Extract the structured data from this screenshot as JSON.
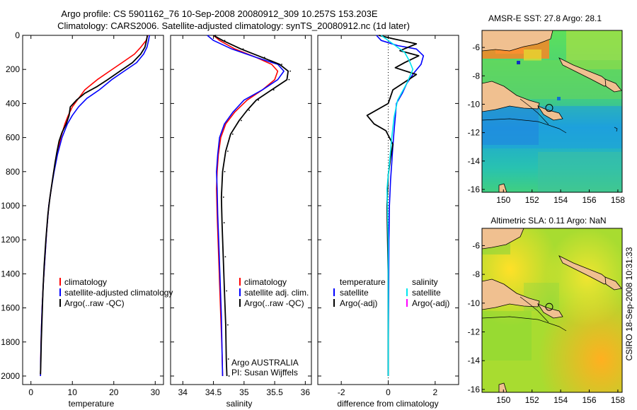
{
  "header": {
    "line1": "Argo profile: CS 5901162_76 10-Sep-2008 20080912_309 10.257S 153.203E",
    "line2": "Climatology: CARS2006. Satellite-adjusted climatology: synTS_20080912.nc (1d later)"
  },
  "side_label": "CSIRO 18-Sep-2008 10:31:33",
  "colors": {
    "climatology": "#ff0000",
    "satellite": "#0000ff",
    "argo": "#000000",
    "sst_satellite": "#00e5ee",
    "argo_adj_sal": "#ff00ff"
  },
  "chart_data": [
    {
      "type": "line",
      "name": "temperature-profile",
      "xlabel": "temperature",
      "ylabel": "",
      "xlim": [
        -2,
        32
      ],
      "ylim": [
        0,
        2050
      ],
      "y_reversed": true,
      "xticks": [
        0,
        10,
        20,
        30
      ],
      "yticks": [
        0,
        200,
        400,
        600,
        800,
        1000,
        1200,
        1400,
        1600,
        1800,
        2000
      ],
      "legend": [
        "climatology",
        "satellite-adjusted climatology",
        "Argo(..raw -QC)"
      ],
      "series": [
        {
          "name": "climatology",
          "color": "#ff0000",
          "x": [
            28.2,
            27.8,
            26.5,
            25,
            22,
            19,
            16,
            13,
            11.5,
            10,
            9,
            8.2,
            7.2,
            6.3,
            5.5,
            4.9,
            4.3,
            3.8,
            3.4,
            3.0,
            2.7,
            2.5,
            2.35,
            2.3
          ],
          "y": [
            0,
            30,
            70,
            110,
            160,
            210,
            260,
            320,
            370,
            420,
            470,
            520,
            600,
            700,
            800,
            900,
            1000,
            1150,
            1300,
            1450,
            1600,
            1750,
            1900,
            2000
          ]
        },
        {
          "name": "satellite-adjusted climatology",
          "color": "#0000ff",
          "x": [
            28.6,
            28.4,
            28,
            27.2,
            25.5,
            22.5,
            19.5,
            16.5,
            13.5,
            11.5,
            10,
            8.8,
            7.5,
            6.4,
            5.6,
            4.9,
            4.3,
            3.8,
            3.4,
            3.0,
            2.7,
            2.5,
            2.35,
            2.3
          ],
          "y": [
            0,
            30,
            70,
            110,
            160,
            210,
            260,
            320,
            370,
            420,
            470,
            520,
            600,
            700,
            800,
            900,
            1000,
            1150,
            1300,
            1450,
            1600,
            1750,
            1900,
            2000
          ]
        },
        {
          "name": "Argo(..raw -QC)",
          "color": "#000000",
          "x": [
            28.1,
            27.9,
            27.5,
            26.5,
            24.5,
            21.5,
            18.5,
            16,
            13,
            11,
            9.5,
            9.2,
            8.5,
            7.5,
            6.8,
            6.3,
            5.8,
            5.2,
            4.6,
            4.1,
            3.6,
            3.2,
            2.9,
            2.7,
            2.5,
            2.4,
            2.3
          ],
          "y": [
            0,
            30,
            70,
            110,
            160,
            210,
            260,
            300,
            340,
            380,
            420,
            470,
            520,
            570,
            620,
            680,
            750,
            850,
            950,
            1050,
            1200,
            1350,
            1500,
            1650,
            1800,
            1900,
            1990
          ]
        }
      ]
    },
    {
      "type": "line",
      "name": "salinity-profile",
      "xlabel": "salinity",
      "ylabel": "",
      "xlim": [
        33.8,
        36.1
      ],
      "ylim": [
        0,
        2050
      ],
      "y_reversed": true,
      "xticks": [
        34,
        34.5,
        35,
        35.5,
        36
      ],
      "legend": [
        "climatology",
        "satellite adj. clim.",
        "Argo(..raw -QC)"
      ],
      "annotation": [
        "Argo AUSTRALIA",
        "PI: Susan Wijffels"
      ],
      "series": [
        {
          "name": "climatology",
          "color": "#ff0000",
          "x": [
            34.5,
            34.6,
            34.85,
            35.2,
            35.45,
            35.55,
            35.5,
            35.3,
            35.05,
            34.85,
            34.7,
            34.62,
            34.58,
            34.56,
            34.55,
            34.56,
            34.58,
            34.6,
            34.62,
            34.64,
            34.65
          ],
          "y": [
            0,
            30,
            80,
            130,
            170,
            210,
            260,
            320,
            380,
            450,
            520,
            600,
            700,
            800,
            900,
            1050,
            1250,
            1450,
            1650,
            1850,
            2000
          ]
        },
        {
          "name": "satellite adj. clim.",
          "color": "#0000ff",
          "x": [
            34.4,
            34.5,
            34.8,
            35.2,
            35.55,
            35.65,
            35.55,
            35.3,
            35.0,
            34.82,
            34.68,
            34.6,
            34.57,
            34.55,
            34.56,
            34.57,
            34.59,
            34.61,
            34.63,
            34.64,
            34.65
          ],
          "y": [
            0,
            30,
            80,
            130,
            170,
            210,
            260,
            320,
            380,
            450,
            520,
            600,
            700,
            800,
            900,
            1050,
            1250,
            1450,
            1650,
            1850,
            2000
          ]
        },
        {
          "name": "Argo(..raw -QC)",
          "color": "#000000",
          "x": [
            34.5,
            34.65,
            34.95,
            35.3,
            35.58,
            35.72,
            35.7,
            35.45,
            35.2,
            35.05,
            34.92,
            34.78,
            34.7,
            34.65,
            34.63,
            34.64,
            34.66,
            34.68,
            34.7,
            34.71,
            34.72
          ],
          "y": [
            0,
            30,
            80,
            130,
            170,
            210,
            260,
            320,
            380,
            440,
            500,
            580,
            680,
            800,
            950,
            1100,
            1300,
            1500,
            1700,
            1900,
            2000
          ]
        }
      ]
    },
    {
      "type": "line",
      "name": "difference-profile",
      "xlabel": "difference from climatology",
      "ylabel": "",
      "xlim": [
        -3,
        3
      ],
      "ylim": [
        0,
        2050
      ],
      "y_reversed": true,
      "xticks": [
        -2,
        0,
        2
      ],
      "legend_left": [
        "temperature",
        "satellite",
        "Argo(-adj)"
      ],
      "legend_right": [
        "salinity",
        "satellite",
        "Argo(-adj)"
      ],
      "series": [
        {
          "name": "temperature satellite",
          "color": "#0000ff",
          "x": [
            -0.5,
            -0.3,
            0.4,
            1.2,
            1.5,
            1.4,
            1.1,
            0.8,
            0.6,
            0.35,
            0.3,
            0.25,
            0.2,
            0.15,
            0.1,
            0.05,
            0.03,
            0.02,
            0.01,
            0.0,
            0.0
          ],
          "y": [
            0,
            30,
            60,
            80,
            120,
            170,
            220,
            280,
            340,
            400,
            480,
            560,
            650,
            750,
            850,
            1000,
            1200,
            1450,
            1700,
            1950,
            2000
          ]
        },
        {
          "name": "temperature Argo(-adj)",
          "color": "#000000",
          "x": [
            -0.4,
            0.2,
            1.2,
            0.5,
            1.3,
            0.7,
            0.3,
            1.2,
            0.2,
            0.0,
            -0.9,
            -0.6,
            -0.1,
            0.2,
            0.1,
            0.0,
            -0.05,
            0.0,
            0.0
          ],
          "y": [
            0,
            20,
            50,
            90,
            120,
            160,
            190,
            230,
            320,
            400,
            470,
            520,
            560,
            640,
            720,
            820,
            1000,
            1400,
            2000
          ]
        },
        {
          "name": "salinity satellite",
          "color": "#00e5ee",
          "x": [
            -0.3,
            0.1,
            0.7,
            0.9,
            1.05,
            0.8,
            0.4,
            0.25,
            0.15,
            0.05,
            -0.05,
            0.0,
            0.0,
            0.0
          ],
          "y": [
            0,
            40,
            100,
            150,
            200,
            280,
            380,
            480,
            600,
            750,
            900,
            1200,
            1600,
            2000
          ]
        }
      ]
    },
    {
      "type": "heatmap",
      "name": "sst-map",
      "title": "AMSR-E SST: 27.8 Argo: 28.1",
      "xlim": [
        148.5,
        158.3
      ],
      "ylim": [
        -16.2,
        -4.8
      ],
      "xticks": [
        150,
        152,
        154,
        156,
        158
      ],
      "yticks": [
        -6,
        -8,
        -10,
        -12,
        -14,
        -16
      ],
      "xtick_labels": [
        "150",
        "152",
        "154",
        "156",
        "158"
      ],
      "ytick_labels": [
        "-6",
        "-8",
        "-10",
        "-12",
        "-14",
        "-16"
      ],
      "argo_position": {
        "lon": 153.2,
        "lat": -10.26
      }
    },
    {
      "type": "heatmap",
      "name": "sla-map",
      "title": "Altimetric SLA: 0.11 Argo: NaN",
      "xlim": [
        148.5,
        158.3
      ],
      "ylim": [
        -16.2,
        -4.8
      ],
      "xticks": [
        150,
        152,
        154,
        156,
        158
      ],
      "yticks": [
        -6,
        -8,
        -10,
        -12,
        -14,
        -16
      ],
      "xtick_labels": [
        "150",
        "152",
        "154",
        "156",
        "158"
      ],
      "ytick_labels": [
        "-6",
        "-8",
        "-10",
        "-12",
        "-14",
        "-16"
      ],
      "argo_position": {
        "lon": 153.2,
        "lat": -10.26
      }
    }
  ]
}
